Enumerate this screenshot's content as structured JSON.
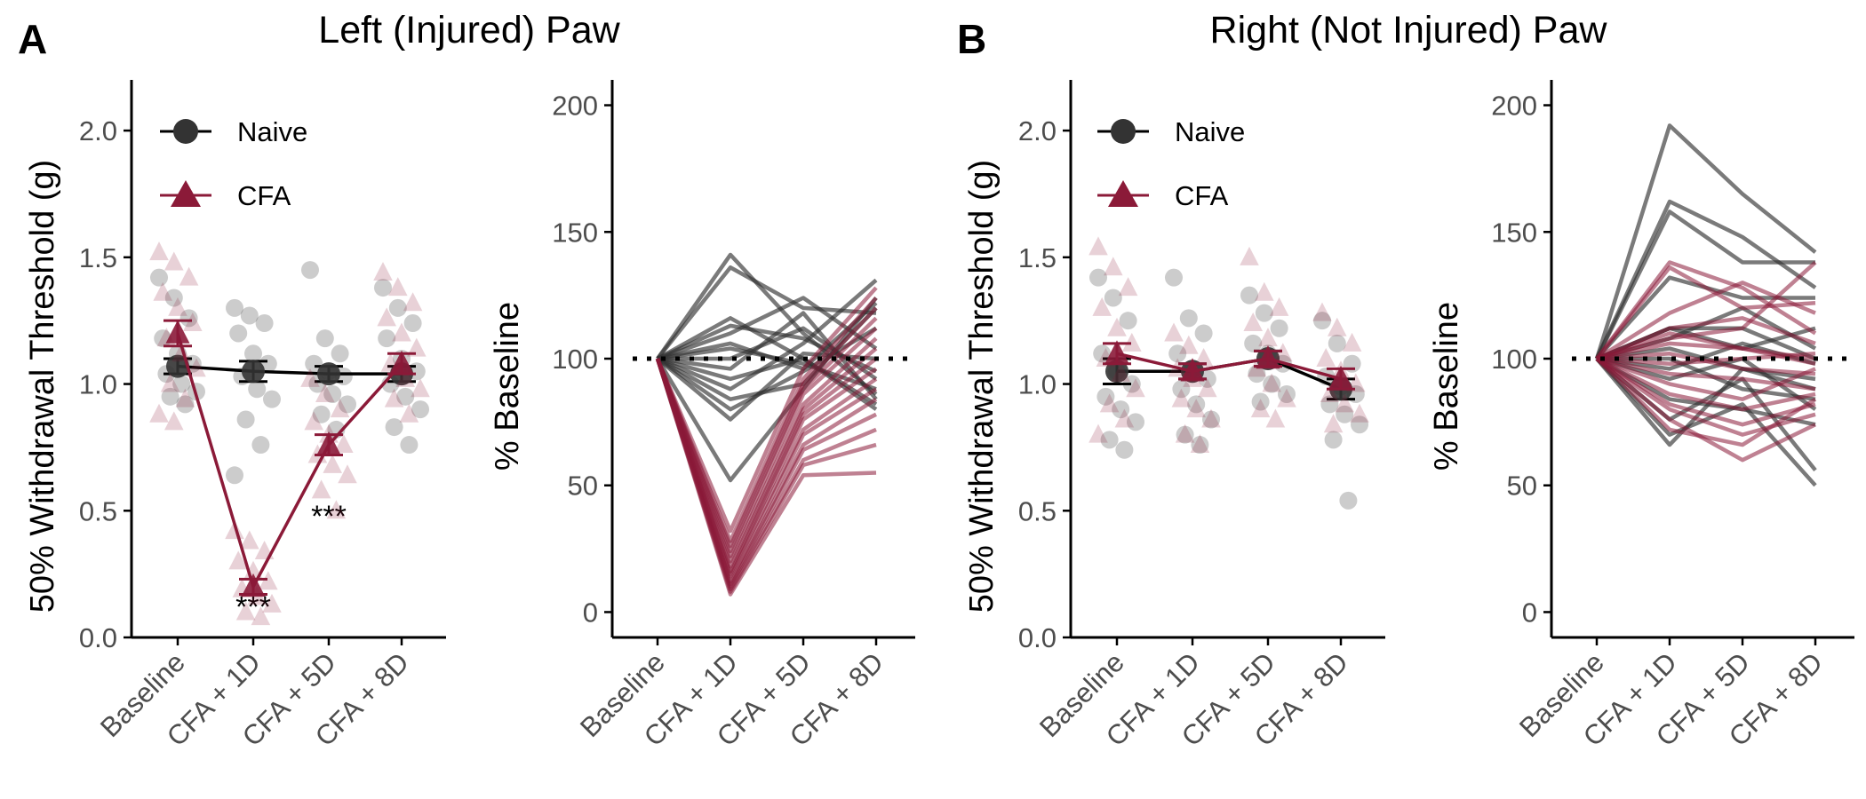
{
  "sections": [
    {
      "letter": "A",
      "title": "Left (Injured) Paw"
    },
    {
      "letter": "B",
      "title": "Right (Not Injured) Paw"
    }
  ],
  "colors": {
    "naive": "#333333",
    "cfa": "#8b1a38",
    "axis": "#000000"
  },
  "chart_data": [
    {
      "id": "A-threshold",
      "type": "scatter",
      "ylabel": "50% Withdrawal Threshold (g)",
      "ylim": [
        0,
        2.2
      ],
      "yticks": [
        "0.0",
        "0.5",
        "1.0",
        "1.5",
        "2.0"
      ],
      "categories": [
        "Baseline",
        "CFA + 1D",
        "CFA + 5D",
        "CFA + 8D"
      ],
      "legend": [
        "Naive",
        "CFA"
      ],
      "legend_position": "top-left",
      "annotations": [
        {
          "text": "***",
          "category": "CFA + 1D",
          "y": 0.02
        },
        {
          "text": "***",
          "category": "CFA + 5D",
          "y": 0.38
        }
      ],
      "series": [
        {
          "name": "Naive",
          "means": [
            1.07,
            1.05,
            1.04,
            1.04
          ],
          "sem": [
            0.03,
            0.04,
            0.03,
            0.03
          ],
          "points": [
            [
              1.42,
              1.34,
              1.26,
              1.18,
              1.12,
              1.08,
              1.04,
              1.0,
              0.97,
              0.95,
              0.92
            ],
            [
              1.3,
              1.27,
              1.24,
              1.2,
              1.12,
              1.08,
              1.03,
              0.98,
              0.94,
              0.86,
              0.76,
              0.64
            ],
            [
              1.45,
              1.18,
              1.12,
              1.08,
              1.05,
              1.03,
              1.0,
              0.96,
              0.92,
              0.88,
              0.82
            ],
            [
              1.38,
              1.3,
              1.24,
              1.18,
              1.1,
              1.05,
              1.0,
              0.95,
              0.9,
              0.83,
              0.76
            ]
          ]
        },
        {
          "name": "CFA",
          "means": [
            1.2,
            0.2,
            0.76,
            1.08
          ],
          "sem": [
            0.05,
            0.03,
            0.04,
            0.04
          ],
          "points": [
            [
              1.52,
              1.48,
              1.42,
              1.36,
              1.3,
              1.24,
              1.18,
              1.12,
              1.06,
              1.0,
              0.94,
              0.88,
              0.85
            ],
            [
              0.42,
              0.38,
              0.34,
              0.3,
              0.26,
              0.22,
              0.19,
              0.16,
              0.13,
              0.1,
              0.08
            ],
            [
              1.02,
              0.96,
              0.9,
              0.85,
              0.8,
              0.76,
              0.72,
              0.68,
              0.64,
              0.58,
              0.5
            ],
            [
              1.44,
              1.38,
              1.32,
              1.26,
              1.2,
              1.14,
              1.08,
              1.02,
              0.98,
              0.94,
              0.88
            ]
          ]
        }
      ]
    },
    {
      "id": "A-percent",
      "type": "line",
      "ylabel": "% Baseline",
      "ylim": [
        -10,
        210
      ],
      "yticks": [
        "0",
        "50",
        "100",
        "150",
        "200"
      ],
      "categories": [
        "Baseline",
        "CFA + 1D",
        "CFA + 5D",
        "CFA + 8D"
      ],
      "reference_line": 100,
      "series": [
        {
          "name": "Naive",
          "lines": [
            [
              100,
              141,
              110,
              86
            ],
            [
              100,
              136,
              120,
              118
            ],
            [
              100,
              116,
              100,
              82
            ],
            [
              100,
              113,
              108,
              95
            ],
            [
              100,
              110,
              124,
              104
            ],
            [
              100,
              106,
              96,
              122
            ],
            [
              100,
              100,
              112,
              92
            ],
            [
              100,
              96,
              118,
              84
            ],
            [
              100,
              92,
              100,
              80
            ],
            [
              100,
              88,
              106,
              131
            ],
            [
              100,
              84,
              90,
              120
            ],
            [
              100,
              80,
              95,
              112
            ],
            [
              100,
              76,
              102,
              100
            ],
            [
              100,
              52,
              88,
              124
            ],
            [
              100,
              104,
              98,
              88
            ]
          ]
        },
        {
          "name": "CFA",
          "lines": [
            [
              100,
              32,
              96,
              128
            ],
            [
              100,
              28,
              92,
              124
            ],
            [
              100,
              26,
              90,
              120
            ],
            [
              100,
              24,
              88,
              116
            ],
            [
              100,
              22,
              86,
              112
            ],
            [
              100,
              20,
              82,
              108
            ],
            [
              100,
              18,
              80,
              104
            ],
            [
              100,
              16,
              78,
              100
            ],
            [
              100,
              15,
              76,
              96
            ],
            [
              100,
              14,
              72,
              92
            ],
            [
              100,
              12,
              70,
              88
            ],
            [
              100,
              11,
              66,
              84
            ],
            [
              100,
              10,
              64,
              78
            ],
            [
              100,
              9,
              60,
              72
            ],
            [
              100,
              8,
              58,
              66
            ],
            [
              100,
              7,
              54,
              55
            ]
          ]
        }
      ]
    },
    {
      "id": "B-threshold",
      "type": "scatter",
      "ylabel": "50% Withdrawal Threshold (g)",
      "ylim": [
        0,
        2.2
      ],
      "yticks": [
        "0.0",
        "0.5",
        "1.0",
        "1.5",
        "2.0"
      ],
      "categories": [
        "Baseline",
        "CFA + 1D",
        "CFA + 5D",
        "CFA + 8D"
      ],
      "legend": [
        "Naive",
        "CFA"
      ],
      "legend_position": "top-left",
      "series": [
        {
          "name": "Naive",
          "means": [
            1.05,
            1.05,
            1.1,
            0.98
          ],
          "sem": [
            0.05,
            0.03,
            0.03,
            0.04
          ],
          "points": [
            [
              1.42,
              1.34,
              1.25,
              1.12,
              1.05,
              1.0,
              0.95,
              0.9,
              0.85,
              0.78,
              0.74
            ],
            [
              1.42,
              1.26,
              1.2,
              1.12,
              1.06,
              1.02,
              0.98,
              0.92,
              0.86,
              0.8,
              0.76
            ],
            [
              1.35,
              1.28,
              1.22,
              1.16,
              1.12,
              1.08,
              1.04,
              1.0,
              0.96,
              0.93
            ],
            [
              1.25,
              1.16,
              1.08,
              1.03,
              0.99,
              0.96,
              0.92,
              0.88,
              0.84,
              0.78,
              0.54
            ]
          ]
        },
        {
          "name": "CFA",
          "means": [
            1.12,
            1.05,
            1.1,
            1.02
          ],
          "sem": [
            0.04,
            0.03,
            0.03,
            0.04
          ],
          "points": [
            [
              1.54,
              1.46,
              1.38,
              1.3,
              1.22,
              1.16,
              1.1,
              1.04,
              0.98,
              0.92,
              0.86,
              0.8
            ],
            [
              1.2,
              1.15,
              1.1,
              1.06,
              1.02,
              0.98,
              0.94,
              0.9,
              0.86,
              0.8,
              0.76
            ],
            [
              1.5,
              1.36,
              1.3,
              1.24,
              1.18,
              1.12,
              1.06,
              1.0,
              0.94,
              0.9,
              0.86
            ],
            [
              1.28,
              1.22,
              1.16,
              1.1,
              1.05,
              1.0,
              0.96,
              0.92,
              0.88,
              0.84
            ]
          ]
        }
      ]
    },
    {
      "id": "B-percent",
      "type": "line",
      "ylabel": "% Baseline",
      "ylim": [
        -10,
        210
      ],
      "yticks": [
        "0",
        "50",
        "100",
        "150",
        "200"
      ],
      "categories": [
        "Baseline",
        "CFA + 1D",
        "CFA + 5D",
        "CFA + 8D"
      ],
      "reference_line": 100,
      "series": [
        {
          "name": "Naive",
          "lines": [
            [
              100,
              192,
              165,
              142
            ],
            [
              100,
              162,
              148,
              128
            ],
            [
              100,
              158,
              138,
              138
            ],
            [
              100,
              132,
              124,
              124
            ],
            [
              100,
              112,
              104,
              112
            ],
            [
              100,
              108,
              120,
              104
            ],
            [
              100,
              104,
              96,
              92
            ],
            [
              100,
              100,
              88,
              84
            ],
            [
              100,
              92,
              100,
              80
            ],
            [
              100,
              84,
              80,
              74
            ],
            [
              100,
              76,
              92,
              56
            ],
            [
              100,
              70,
              82,
              50
            ],
            [
              100,
              66,
              96,
              88
            ],
            [
              100,
              112,
              112,
              100
            ],
            [
              100,
              96,
              106,
              98
            ]
          ]
        },
        {
          "name": "CFA",
          "lines": [
            [
              100,
              138,
              128,
              110
            ],
            [
              100,
              136,
              120,
              122
            ],
            [
              100,
              118,
              130,
              118
            ],
            [
              100,
              112,
              116,
              106
            ],
            [
              100,
              108,
              112,
              138
            ],
            [
              100,
              106,
              104,
              98
            ],
            [
              100,
              102,
              96,
              94
            ],
            [
              100,
              98,
              100,
              102
            ],
            [
              100,
              94,
              92,
              88
            ],
            [
              100,
              90,
              84,
              96
            ],
            [
              100,
              86,
              80,
              86
            ],
            [
              100,
              82,
              74,
              82
            ],
            [
              100,
              80,
              70,
              78
            ],
            [
              100,
              76,
              60,
              74
            ],
            [
              100,
              72,
              66,
              84
            ],
            [
              100,
              110,
              104,
              100
            ]
          ]
        }
      ]
    }
  ]
}
